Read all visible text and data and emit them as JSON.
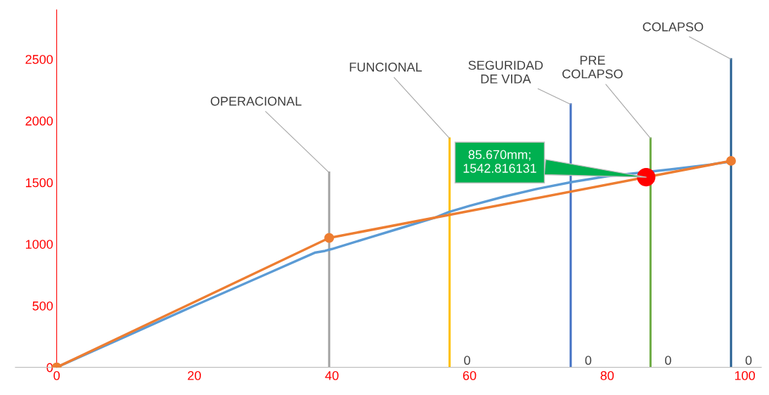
{
  "chart_data": {
    "type": "line",
    "xlim": [
      -6,
      102.4
    ],
    "ylim": [
      0,
      2900
    ],
    "xticks": [
      0,
      20,
      40,
      60,
      80,
      100
    ],
    "yticks": [
      0,
      500,
      1000,
      1500,
      2000,
      2500
    ],
    "grid": false,
    "legend": false,
    "series": [
      {
        "color": "#5b9bd5",
        "marker": "none",
        "x": [
          0,
          10,
          20,
          30,
          37.5,
          39,
          40,
          45,
          50,
          55,
          57,
          60,
          65,
          70,
          75,
          80,
          89,
          95,
          98
        ],
        "values": [
          0,
          250,
          500,
          745,
          930,
          945,
          960,
          1045,
          1130,
          1215,
          1260,
          1310,
          1385,
          1450,
          1505,
          1550,
          1605,
          1645,
          1670
        ]
      },
      {
        "color": "#ed7d31",
        "marker": "circle",
        "x": [
          0,
          39.6,
          98
        ],
        "values": [
          0,
          1050,
          1675
        ]
      },
      {
        "type": "line",
        "name": "OPERACIONAL",
        "color": "#a5a5a5",
        "marker": "none",
        "x": [
          39.6,
          39.6
        ],
        "values": [
          0,
          1580
        ],
        "value_labels": [
          null,
          null
        ]
      },
      {
        "type": "line",
        "name": "FUNCIONAL",
        "color": "#ffc000",
        "marker": "none",
        "x": [
          57.1,
          57.1
        ],
        "values": [
          0,
          1857
        ],
        "value_labels": [
          "0",
          null
        ]
      },
      {
        "type": "line",
        "name": "SEGURIDAD\nDE VIDA",
        "color": "#4472c4",
        "marker": "none",
        "x": [
          74.7,
          74.7
        ],
        "values": [
          0,
          2133
        ],
        "value_labels": [
          "0",
          null
        ]
      },
      {
        "type": "line",
        "name": "PRE\nCOLAPSO",
        "color": "#70ad47",
        "marker": "none",
        "x": [
          86.3,
          86.3
        ],
        "values": [
          0,
          1857
        ],
        "value_labels": [
          "0",
          null
        ]
      },
      {
        "type": "line",
        "name": "COLAPSO",
        "color": "#255e91",
        "marker": "none",
        "x": [
          98.0,
          98.0
        ],
        "values": [
          0,
          2500
        ],
        "value_labels": [
          "0",
          null
        ]
      },
      {
        "type": "scatter",
        "color": "#ff0000",
        "marker": "circle",
        "x": [
          85.67
        ],
        "values": [
          1543
        ]
      }
    ],
    "annotations": [
      {
        "text": "85.670mm;\n1542.816131",
        "x": 85.67,
        "y": 1542.816131
      }
    ]
  }
}
